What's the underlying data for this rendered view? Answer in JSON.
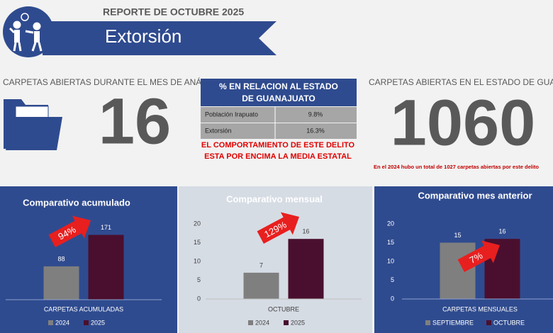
{
  "header": {
    "report": "REPORTE DE  OCTUBRE 2025",
    "title": "Extorsión"
  },
  "kpi_left": {
    "label": "CARPETAS ABIERTAS DURANTE EL MES DE ANÁLISIS",
    "value": "16"
  },
  "kpi_right": {
    "label": "CARPETAS ABIERTAS EN EL ESTADO DE GUANAJUATO",
    "value": "1060",
    "note": "En el 2024 hubo un total de 1027 carpetas abiertas por este delito"
  },
  "table": {
    "header": [
      "% EN RELACION AL ESTADO",
      "DE GUANAJUATO"
    ],
    "rows": [
      [
        "Población Irapuato",
        "9.8%"
      ],
      [
        "Extorsión",
        "16.3%"
      ]
    ],
    "note": [
      "EL COMPORTAMIENTO DE ESTE DELITO",
      "ESTA POR ENCIMA LA MEDIA ESTATAL"
    ]
  },
  "chart_data": [
    {
      "type": "bar",
      "title": "Comparativo acumulado",
      "categories": [
        "CARPETAS ACUMULADAS"
      ],
      "series": [
        {
          "name": "2024",
          "color": "#7f7f7f",
          "values": [
            88
          ]
        },
        {
          "name": "2025",
          "color": "#4a0f2e",
          "values": [
            171
          ]
        }
      ],
      "ylim": [
        0,
        200
      ],
      "annotation": "94%"
    },
    {
      "type": "bar",
      "title": "Comparativo mensual",
      "categories": [
        "OCTUBRE"
      ],
      "series": [
        {
          "name": "2024",
          "color": "#7f7f7f",
          "values": [
            7
          ]
        },
        {
          "name": "2025",
          "color": "#4a0f2e",
          "values": [
            16
          ]
        }
      ],
      "ylim": [
        0,
        20
      ],
      "yticks": [
        0,
        5,
        10,
        15,
        20
      ],
      "annotation": "129%"
    },
    {
      "type": "bar",
      "title": "Comparativo mes anterior",
      "categories": [
        "CARPETAS MENSUALES"
      ],
      "series": [
        {
          "name": "SEPTIEMBRE",
          "color": "#7f7f7f",
          "values": [
            15
          ]
        },
        {
          "name": "OCTUBRE",
          "color": "#4a0f2e",
          "values": [
            16
          ]
        }
      ],
      "ylim": [
        0,
        20
      ],
      "yticks": [
        0,
        5,
        10,
        15,
        20
      ],
      "annotation": "7%"
    }
  ]
}
